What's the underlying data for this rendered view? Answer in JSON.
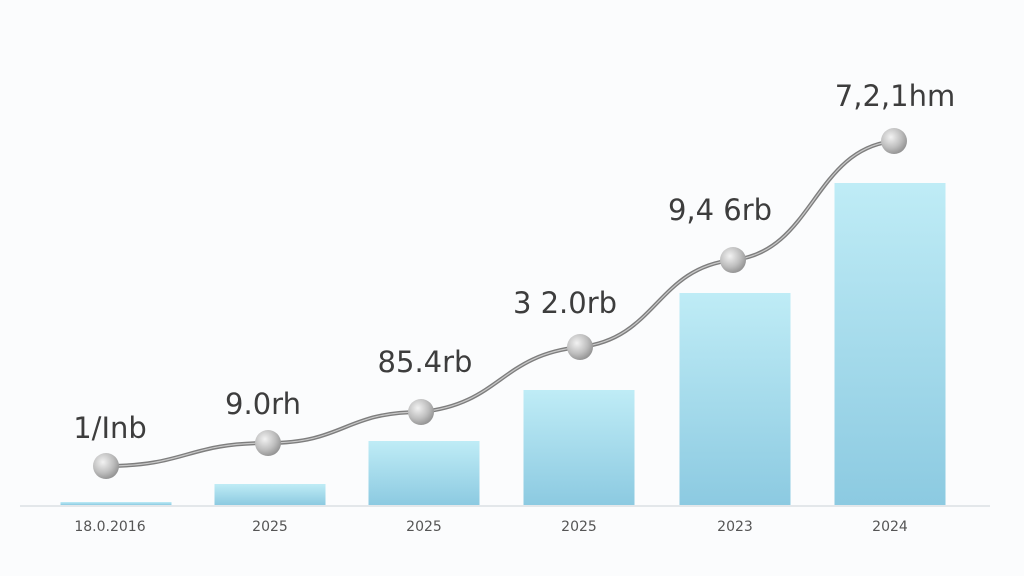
{
  "chart_data": {
    "type": "bar+line",
    "title": "",
    "xlabel": "",
    "ylabel": "",
    "grid": false,
    "legend": "none",
    "categories": [
      "18.0.2016",
      "2025",
      "2025",
      "2025",
      "2023",
      "2024"
    ],
    "bar_values": [
      3,
      21,
      64,
      115,
      212,
      322
    ],
    "line_values": [
      39,
      62,
      93,
      158,
      245,
      364
    ],
    "data_labels": [
      "1/Inb",
      "9.0rh",
      "85.4rb",
      "3 2.0rb",
      "9,4 6rb",
      "7,2,1hm"
    ],
    "ylim": [
      0,
      380
    ],
    "colors": {
      "bar_top": "#bdeaf5",
      "bar_bottom": "#8ccbe2",
      "line": "#8a8a8a",
      "marker": "#c4c4c4",
      "text": "#444444"
    }
  }
}
